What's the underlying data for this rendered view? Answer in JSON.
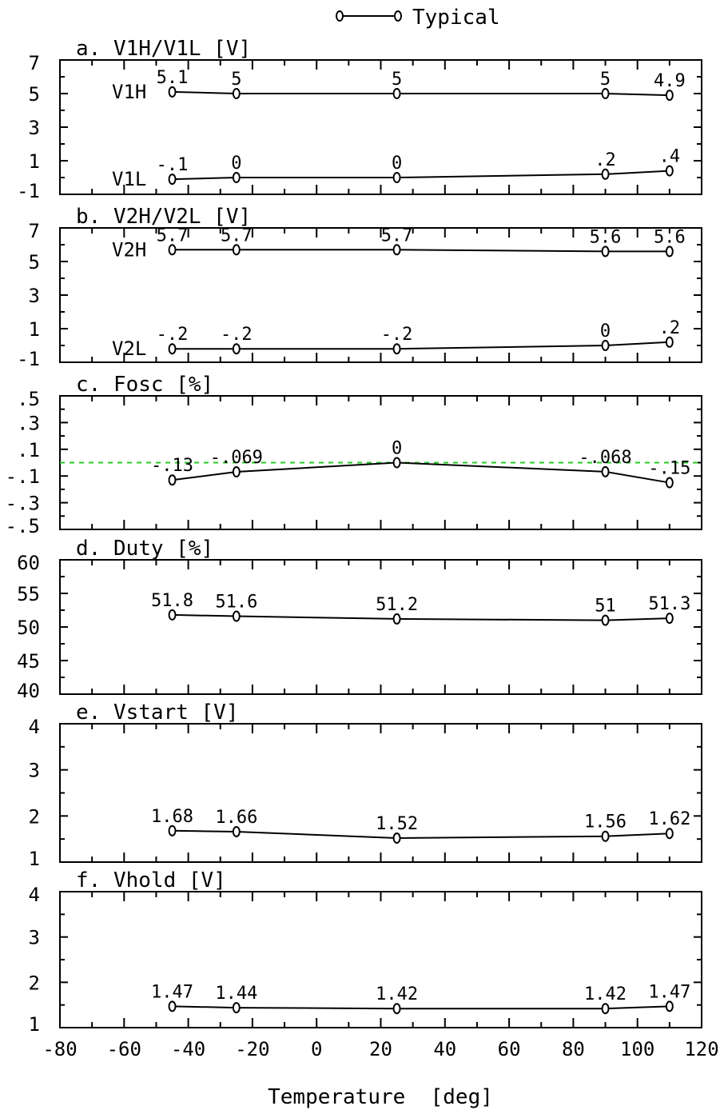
{
  "chart_data": {
    "type": "line",
    "legend": {
      "label": "Typical",
      "placement": "top-center"
    },
    "xlabel": "Temperature  [deg]",
    "x_ticks": [
      "-80",
      "-60",
      "-40",
      "-20",
      "0",
      "20",
      "40",
      "60",
      "80",
      "100",
      "120"
    ],
    "xlim": [
      -80,
      120
    ],
    "x": [
      -45,
      -25,
      25,
      90,
      110
    ],
    "panels": [
      {
        "title": "a. V1H/V1L  [V]",
        "ylim": [
          -1,
          7
        ],
        "y_ticks": [
          "7",
          "5",
          "3",
          "1",
          "-1"
        ],
        "series": [
          {
            "name": "V1H",
            "values": [
              5.1,
              5,
              5,
              5,
              4.9
            ],
            "labels": [
              "5.1",
              "5",
              "5",
              "5",
              "4.9"
            ]
          },
          {
            "name": "V1L",
            "values": [
              -0.1,
              0,
              0,
              0.2,
              0.4
            ],
            "labels": [
              "-.1",
              "0",
              "0",
              ".2",
              ".4"
            ]
          }
        ]
      },
      {
        "title": "b. V2H/V2L  [V]",
        "ylim": [
          -1,
          7
        ],
        "y_ticks": [
          "7",
          "5",
          "3",
          "1",
          "-1"
        ],
        "series": [
          {
            "name": "V2H",
            "values": [
              5.7,
              5.7,
              5.7,
              5.6,
              5.6
            ],
            "labels": [
              "5.7",
              "5.7",
              "5.7",
              "5.6",
              "5.6"
            ]
          },
          {
            "name": "V2L",
            "values": [
              -0.2,
              -0.2,
              -0.2,
              0,
              0.2
            ],
            "labels": [
              "-.2",
              "-.2",
              "-.2",
              "0",
              ".2"
            ]
          }
        ]
      },
      {
        "title": "c. Fosc  [%]",
        "ylim": [
          -0.5,
          0.5
        ],
        "y_ticks": [
          ".5",
          ".3",
          ".1",
          "-.1",
          "-.3",
          "-.5"
        ],
        "reference_line": {
          "y": 0,
          "color": "#22cc22",
          "style": "dashed"
        },
        "series": [
          {
            "name": "",
            "values": [
              -0.13,
              -0.069,
              0,
              -0.068,
              -0.15
            ],
            "labels": [
              "-.13",
              "-.069",
              "0",
              "-.068",
              "-.15"
            ]
          }
        ]
      },
      {
        "title": "d. Duty  [%]",
        "ylim": [
          40,
          60
        ],
        "y_ticks": [
          "60",
          "55",
          "50",
          "45",
          "40"
        ],
        "series": [
          {
            "name": "",
            "values": [
              51.8,
              51.6,
              51.2,
              51,
              51.3
            ],
            "labels": [
              "51.8",
              "51.6",
              "51.2",
              "51",
              "51.3"
            ]
          }
        ]
      },
      {
        "title": "e. Vstart  [V]",
        "ylim": [
          1,
          4
        ],
        "y_ticks": [
          "4",
          "3",
          "2",
          "1"
        ],
        "series": [
          {
            "name": "",
            "values": [
              1.68,
              1.66,
              1.52,
              1.56,
              1.62
            ],
            "labels": [
              "1.68",
              "1.66",
              "1.52",
              "1.56",
              "1.62"
            ]
          }
        ]
      },
      {
        "title": "f. Vhold  [V]",
        "ylim": [
          1,
          4
        ],
        "y_ticks": [
          "4",
          "3",
          "2",
          "1"
        ],
        "series": [
          {
            "name": "",
            "values": [
              1.47,
              1.44,
              1.42,
              1.42,
              1.47
            ],
            "labels": [
              "1.47",
              "1.44",
              "1.42",
              "1.42",
              "1.47"
            ]
          }
        ]
      }
    ]
  }
}
